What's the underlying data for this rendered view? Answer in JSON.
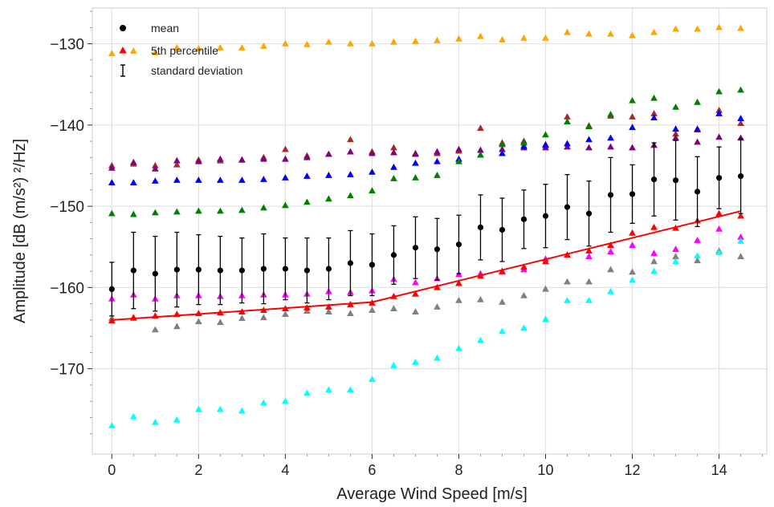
{
  "chart_data": {
    "type": "scatter",
    "title": "",
    "xlabel": "Average Wind Speed [m/s]",
    "ylabel": "Amplitude [dB (m/s²) ²/Hz]",
    "xlim": [
      -0.45,
      15.1
    ],
    "ylim": [
      -180.5,
      -125.6
    ],
    "xticks": [
      0,
      2,
      4,
      6,
      8,
      10,
      12,
      14
    ],
    "yticks": [
      -170,
      -160,
      -150,
      -140,
      -130
    ],
    "grid": true,
    "legend_position": "top-left",
    "legend": [
      {
        "label": "mean",
        "marker": "circle",
        "color": "#000000"
      },
      {
        "label": "5th percentile",
        "marker": "triangle",
        "color": "#ff0000"
      },
      {
        "label": "standard deviation",
        "marker": "errorbar",
        "color": "#000000"
      }
    ],
    "x": [
      0,
      0.5,
      1,
      1.5,
      2,
      2.5,
      3,
      3.5,
      4,
      4.5,
      5,
      5.5,
      6,
      6.5,
      7,
      7.5,
      8,
      8.5,
      9,
      9.5,
      10,
      10.5,
      11,
      11.5,
      12,
      12.5,
      13,
      13.5,
      14,
      14.5
    ],
    "series": [
      {
        "color": "#ffa500",
        "marker": "triangle",
        "values": [
          -131.2,
          -130.9,
          -131.1,
          -130.5,
          -130.6,
          -130.5,
          -130.5,
          -130.3,
          -130.0,
          -130.1,
          -129.8,
          -130.0,
          -130.0,
          -129.8,
          -129.7,
          -129.6,
          -129.4,
          -129.1,
          -129.5,
          -129.3,
          -129.3,
          -128.6,
          -128.8,
          -128.8,
          -129.0,
          -128.6,
          -128.2,
          -128.2,
          -128.0,
          -128.1
        ]
      },
      {
        "color": "#a52a2a",
        "marker": "triangle",
        "values": [
          -145.0,
          -144.8,
          -145.0,
          -144.9,
          -144.3,
          -144.4,
          -144.3,
          -144.0,
          -143.0,
          -143.8,
          -143.6,
          -141.8,
          -143.3,
          -142.8,
          -143.5,
          -143.5,
          -143.2,
          -140.4,
          -142.2,
          -142.0,
          -142.4,
          -139.0,
          -140.1,
          -138.9,
          -139.0,
          -138.6,
          -141.1,
          -140.6,
          -138.2,
          -139.8
        ]
      },
      {
        "color": "#800080",
        "marker": "triangle",
        "values": [
          -145.3,
          -144.6,
          -145.4,
          -144.4,
          -144.5,
          -144.2,
          -144.3,
          -144.2,
          -144.2,
          -144.0,
          -143.6,
          -143.3,
          -143.5,
          -143.4,
          -143.6,
          -143.3,
          -143.0,
          -143.1,
          -143.0,
          -142.8,
          -142.8,
          -142.7,
          -142.8,
          -142.7,
          -142.8,
          -142.5,
          -141.6,
          -142.1,
          -141.5,
          -141.6
        ]
      },
      {
        "color": "#0000ff",
        "marker": "triangle",
        "values": [
          -147.1,
          -147.1,
          -146.9,
          -146.8,
          -146.8,
          -146.8,
          -146.8,
          -146.7,
          -146.5,
          -146.3,
          -146.2,
          -146.1,
          -145.8,
          -145.2,
          -144.7,
          -144.5,
          -144.2,
          -143.7,
          -143.5,
          -142.6,
          -142.5,
          -142.3,
          -141.8,
          -141.6,
          -140.3,
          -139.1,
          -140.5,
          -140.5,
          -138.6,
          -139.2
        ]
      },
      {
        "color": "#008000",
        "marker": "triangle",
        "values": [
          -150.9,
          -151.0,
          -150.8,
          -150.7,
          -150.6,
          -150.6,
          -150.5,
          -150.2,
          -149.9,
          -149.5,
          -149.1,
          -148.7,
          -148.1,
          -146.6,
          -146.5,
          -146.2,
          -144.5,
          -143.7,
          -142.4,
          -142.2,
          -141.2,
          -139.6,
          -140.2,
          -138.7,
          -137.0,
          -136.7,
          -137.8,
          -137.2,
          -135.9,
          -135.7
        ]
      },
      {
        "color": "#808080",
        "marker": "triangle",
        "values": [
          -163.8,
          -163.8,
          -165.2,
          -164.8,
          -164.2,
          -164.3,
          -163.8,
          -163.7,
          -163.3,
          -162.9,
          -163.0,
          -163.2,
          -162.8,
          -162.6,
          -163.0,
          -162.4,
          -161.6,
          -161.5,
          -161.8,
          -161.0,
          -160.2,
          -159.3,
          -159.3,
          -157.8,
          -158.1,
          -156.8,
          -156.2,
          -156.7,
          -155.5,
          -156.2
        ]
      },
      {
        "color": "#ff00ff",
        "marker": "triangle",
        "values": [
          -161.4,
          -160.9,
          -161.4,
          -161.0,
          -161.0,
          -161.1,
          -161.0,
          -160.9,
          -160.9,
          -160.8,
          -160.5,
          -160.6,
          -160.4,
          -159.0,
          -159.4,
          -158.9,
          -158.4,
          -158.3,
          -158.1,
          -157.8,
          -156.5,
          -156.0,
          -156.2,
          -155.6,
          -154.8,
          -155.8,
          -155.3,
          -154.2,
          -152.8,
          -153.8
        ]
      },
      {
        "color": "#00ffff",
        "marker": "triangle",
        "values": [
          -177.0,
          -175.9,
          -176.6,
          -176.3,
          -175.0,
          -175.0,
          -175.2,
          -174.2,
          -174.0,
          -173.0,
          -172.6,
          -172.6,
          -171.3,
          -169.6,
          -169.2,
          -168.7,
          -167.5,
          -166.5,
          -165.4,
          -165.0,
          -163.9,
          -161.6,
          -161.6,
          -160.5,
          -159.1,
          -158.0,
          -156.8,
          -156.1,
          -155.7,
          -154.3
        ]
      },
      {
        "color": "#ff0000",
        "marker": "triangle",
        "is_percentile": true,
        "values": [
          -164.1,
          -163.7,
          -163.5,
          -163.3,
          -163.2,
          -163.1,
          -163.0,
          -162.8,
          -162.6,
          -162.5,
          -162.4,
          -162.1,
          -161.9,
          -161.1,
          -160.8,
          -160.0,
          -159.5,
          -158.6,
          -158.0,
          -157.5,
          -156.8,
          -156.0,
          -155.5,
          -154.8,
          -153.3,
          -152.6,
          -152.7,
          -151.8,
          -150.9,
          -151.2
        ]
      }
    ],
    "mean": [
      -160.2,
      -157.9,
      -158.3,
      -157.8,
      -157.8,
      -157.9,
      -157.9,
      -157.7,
      -157.7,
      -157.9,
      -157.7,
      -157.0,
      -157.2,
      -156.0,
      -155.1,
      -155.3,
      -154.7,
      -152.6,
      -152.9,
      -151.6,
      -151.2,
      -150.1,
      -150.9,
      -148.6,
      -148.5,
      -146.7,
      -146.8,
      -148.2,
      -146.5,
      -146.3
    ],
    "std": [
      3.3,
      4.7,
      4.6,
      4.6,
      4.3,
      4.2,
      4.0,
      4.3,
      3.8,
      4.0,
      3.8,
      4.0,
      3.8,
      3.6,
      3.8,
      3.8,
      3.6,
      4.0,
      3.9,
      3.6,
      3.9,
      4.0,
      4.0,
      4.6,
      3.6,
      4.5,
      4.9,
      4.3,
      3.8,
      4.6
    ],
    "fit_line": {
      "color": "#ff0000",
      "x": [
        0,
        6,
        14.5
      ],
      "y": [
        -164.0,
        -161.8,
        -150.6
      ]
    }
  }
}
